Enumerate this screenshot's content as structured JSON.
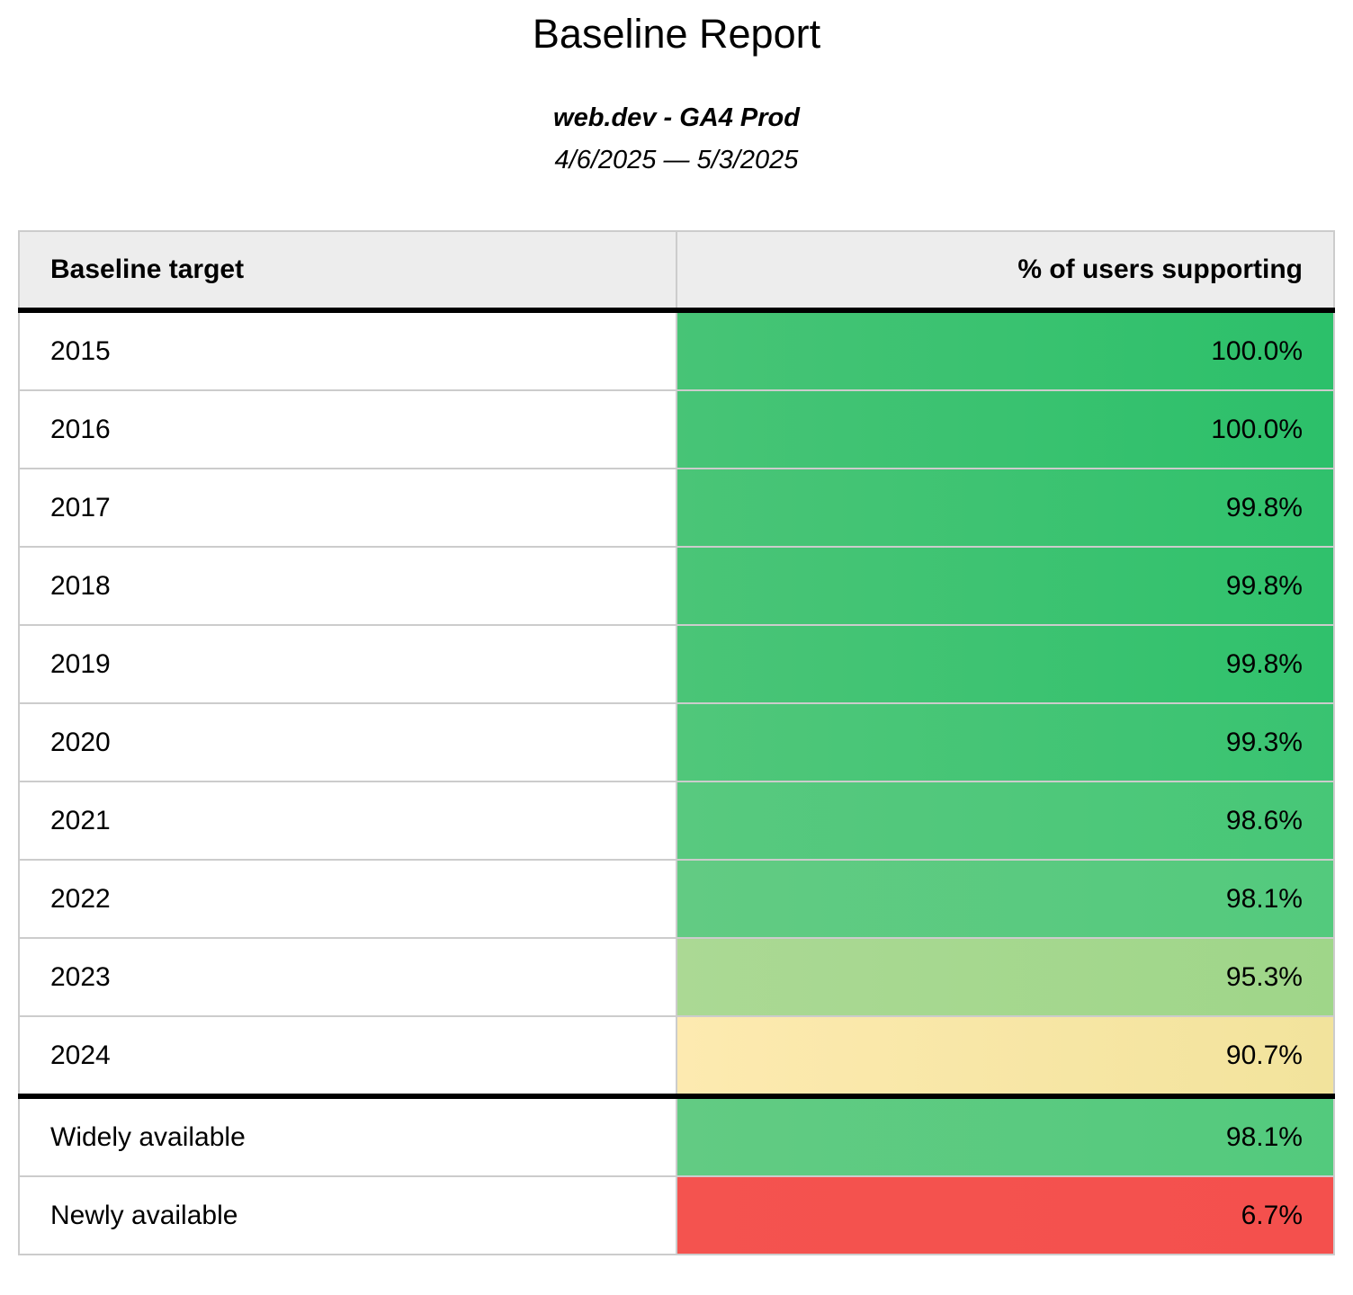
{
  "page": {
    "title": "Baseline Report",
    "subtitle": "web.dev - GA4 Prod",
    "date_range": "4/6/2025 — 5/3/2025"
  },
  "style": {
    "header_bg": "#ededed",
    "border_color": "#cccccc",
    "divider_color": "#000000"
  },
  "table": {
    "headers": {
      "target": "Baseline target",
      "support": "% of users supporting"
    },
    "rows": [
      {
        "target": "2015",
        "value": "100.0%",
        "bg_left": "#47c476",
        "bg_right": "#2cc06a",
        "section": "year"
      },
      {
        "target": "2016",
        "value": "100.0%",
        "bg_left": "#47c476",
        "bg_right": "#2cc06a",
        "section": "year"
      },
      {
        "target": "2017",
        "value": "99.8%",
        "bg_left": "#4ac577",
        "bg_right": "#30c16c",
        "section": "year"
      },
      {
        "target": "2018",
        "value": "99.8%",
        "bg_left": "#4ac577",
        "bg_right": "#30c16c",
        "section": "year"
      },
      {
        "target": "2019",
        "value": "99.8%",
        "bg_left": "#4ac577",
        "bg_right": "#30c16c",
        "section": "year"
      },
      {
        "target": "2020",
        "value": "99.3%",
        "bg_left": "#50c77a",
        "bg_right": "#39c371",
        "section": "year"
      },
      {
        "target": "2021",
        "value": "98.6%",
        "bg_left": "#58c97f",
        "bg_right": "#47c777",
        "section": "year"
      },
      {
        "target": "2022",
        "value": "98.1%",
        "bg_left": "#62cb83",
        "bg_right": "#53ca7d",
        "section": "year"
      },
      {
        "target": "2023",
        "value": "95.3%",
        "bg_left": "#abd994",
        "bg_right": "#9fd689",
        "section": "year"
      },
      {
        "target": "2024",
        "value": "90.7%",
        "bg_left": "#fdeab0",
        "bg_right": "#f2e39c",
        "section": "year"
      },
      {
        "target": "Widely available",
        "value": "98.1%",
        "bg_left": "#62cb83",
        "bg_right": "#53ca7d",
        "section": "summary"
      },
      {
        "target": "Newly available",
        "value": "6.7%",
        "bg_left": "#f4534f",
        "bg_right": "#f4504d",
        "section": "summary"
      }
    ]
  },
  "chart_data": {
    "type": "table",
    "title": "Baseline Report",
    "subtitle": "web.dev - GA4 Prod",
    "date_range": "4/6/2025 — 5/3/2025",
    "columns": [
      "Baseline target",
      "% of users supporting"
    ],
    "rows": [
      [
        "2015",
        100.0
      ],
      [
        "2016",
        100.0
      ],
      [
        "2017",
        99.8
      ],
      [
        "2018",
        99.8
      ],
      [
        "2019",
        99.8
      ],
      [
        "2020",
        99.3
      ],
      [
        "2021",
        98.6
      ],
      [
        "2022",
        98.1
      ],
      [
        "2023",
        95.3
      ],
      [
        "2024",
        90.7
      ],
      [
        "Widely available",
        98.1
      ],
      [
        "Newly available",
        6.7
      ]
    ]
  }
}
